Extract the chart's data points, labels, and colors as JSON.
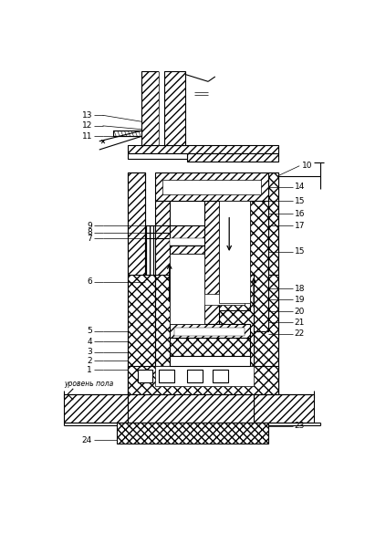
{
  "figsize": [
    4.0,
    5.84
  ],
  "dpi": 100,
  "bg": "#ffffff",
  "lc": "#000000",
  "labels_left": [
    [
      "1",
      62,
      407
    ],
    [
      "2",
      62,
      422
    ],
    [
      "3",
      62,
      437
    ],
    [
      "4",
      62,
      452
    ],
    [
      "5",
      62,
      477
    ],
    [
      "6",
      40,
      310
    ],
    [
      "7",
      40,
      252
    ],
    [
      "8",
      40,
      240
    ],
    [
      "9",
      40,
      228
    ],
    [
      "11",
      40,
      142
    ],
    [
      "12",
      40,
      125
    ],
    [
      "13",
      40,
      108
    ]
  ],
  "labels_right": [
    [
      "10",
      358,
      170
    ],
    [
      "14",
      358,
      198
    ],
    [
      "15",
      358,
      213
    ],
    [
      "16",
      358,
      228
    ],
    [
      "17",
      358,
      245
    ],
    [
      "15",
      358,
      267
    ],
    [
      "18",
      358,
      320
    ],
    [
      "19",
      358,
      335
    ],
    [
      "20",
      358,
      352
    ],
    [
      "21",
      358,
      368
    ],
    [
      "22",
      358,
      384
    ],
    [
      "23",
      358,
      530
    ],
    [
      "24",
      38,
      535
    ]
  ]
}
